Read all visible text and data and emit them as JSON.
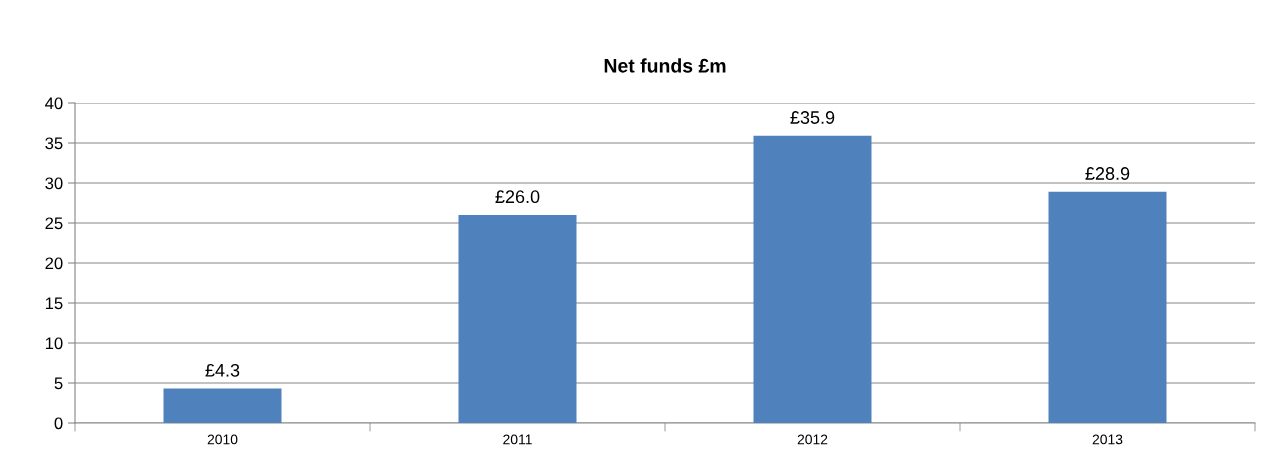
{
  "chart_data": {
    "type": "bar",
    "title": "Net funds £m",
    "categories": [
      "2010",
      "2011",
      "2012",
      "2013"
    ],
    "values": [
      4.3,
      26.0,
      35.9,
      28.9
    ],
    "value_labels": [
      "£4.3",
      "£26.0",
      "£35.9",
      "£28.9"
    ],
    "color": "#4f81bd",
    "ylim": [
      0,
      40
    ],
    "yticks": [
      0,
      5,
      10,
      15,
      20,
      25,
      30,
      35,
      40
    ],
    "grid": "y"
  }
}
